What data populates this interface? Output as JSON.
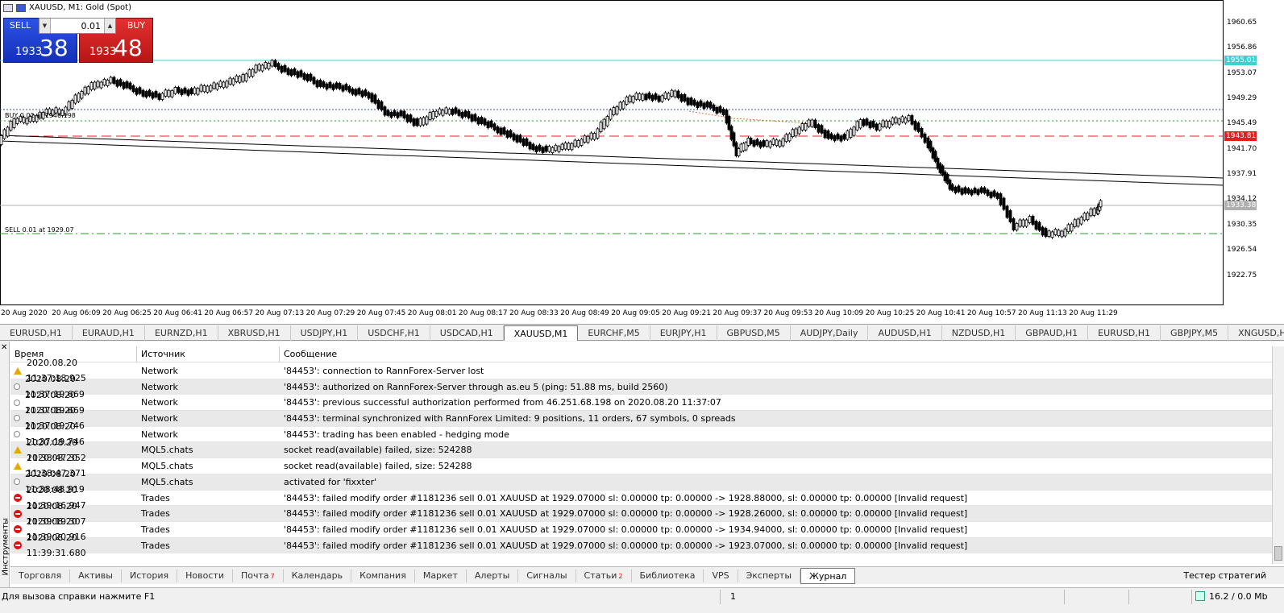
{
  "chart": {
    "title": "XAUUSD, M1:  Gold (Spot)",
    "one_click": {
      "sell_label": "SELL",
      "buy_label": "BUY",
      "volume": "0.01",
      "sell_price_small": "1933",
      "sell_price_big": "38",
      "buy_price_small": "1933",
      "buy_price_big": "48"
    },
    "price_labels": [
      "1960.65",
      "1956.86",
      "1953.07",
      "1949.29",
      "1945.49",
      "1941.70",
      "1937.91",
      "1934.12",
      "1930.35",
      "1926.54",
      "1922.75"
    ],
    "price_tags": [
      {
        "text": "1955.01",
        "color": "#40d0d0"
      },
      {
        "text": "1943.81",
        "color": "#e02020"
      },
      {
        "text": "1933.38",
        "color": "#b0b0b0"
      }
    ],
    "time_labels": [
      "20 Aug 2020",
      "20 Aug 06:09",
      "20 Aug 06:25",
      "20 Aug 06:41",
      "20 Aug 06:57",
      "20 Aug 07:13",
      "20 Aug 07:29",
      "20 Aug 07:45",
      "20 Aug 08:01",
      "20 Aug 08:17",
      "20 Aug 08:33",
      "20 Aug 08:49",
      "20 Aug 09:05",
      "20 Aug 09:21",
      "20 Aug 09:37",
      "20 Aug 09:53",
      "20 Aug 10:09",
      "20 Aug 10:25",
      "20 Aug 10:41",
      "20 Aug 10:57",
      "20 Aug 11:13",
      "20 Aug 11:29"
    ],
    "buy_order_label": "BUY 0.01 at 1946.198",
    "sell_order_label": "SELL 0.01 at 1929.07"
  },
  "symbol_tabs": [
    "EURUSD,H1",
    "EURAUD,H1",
    "EURNZD,H1",
    "XBRUSD,H1",
    "USDJPY,H1",
    "USDCHF,H1",
    "USDCAD,H1",
    "XAUUSD,M1",
    "EURCHF,M5",
    "EURJPY,H1",
    "GBPUSD,M5",
    "AUDJPY,Daily",
    "AUDUSD,H1",
    "NZDUSD,H1",
    "GBPAUD,H1",
    "EURUSD,H1",
    "GBPJPY,M5",
    "XNGUSD,H1"
  ],
  "active_symbol_tab": "XAUUSD,M1",
  "toolbox": {
    "vertical_label": "Инструменты",
    "columns": {
      "time": "Время",
      "source": "Источник",
      "message": "Сообщение"
    },
    "rows": [
      {
        "icon": "warn",
        "time": "2020.08.20 11:37:18.925",
        "source": "Network",
        "message": "'84453': connection to RannForex-Server lost"
      },
      {
        "icon": "info",
        "time": "2020.08.20 11:37:19.669",
        "source": "Network",
        "message": "'84453': authorized on RannForex-Server through as.eu 5 (ping: 51.88 ms, build 2560)"
      },
      {
        "icon": "info",
        "time": "2020.08.20 11:37:19.669",
        "source": "Network",
        "message": "'84453': previous successful authorization performed from 46.251.68.198 on 2020.08.20 11:37:07"
      },
      {
        "icon": "info",
        "time": "2020.08.20 11:37:19.746",
        "source": "Network",
        "message": "'84453': terminal synchronized with RannForex Limited: 9 positions, 11 orders, 67 symbols, 0 spreads"
      },
      {
        "icon": "info",
        "time": "2020.08.20 11:37:19.746",
        "source": "Network",
        "message": "'84453': trading has been enabled - hedging mode"
      },
      {
        "icon": "warn",
        "time": "2020.08.20 11:38:47.352",
        "source": "MQL5.chats",
        "message": "socket read(available) failed, size: 524288"
      },
      {
        "icon": "warn",
        "time": "2020.08.20 11:38:47.371",
        "source": "MQL5.chats",
        "message": "socket read(available) failed, size: 524288"
      },
      {
        "icon": "info",
        "time": "2020.08.20 11:38:48.919",
        "source": "MQL5.chats",
        "message": "activated for 'fixxter'"
      },
      {
        "icon": "err",
        "time": "2020.08.20 11:39:16.947",
        "source": "Trades",
        "message": "'84453': failed modify order #1181236 sell 0.01 XAUUSD at 1929.07000 sl: 0.00000 tp: 0.00000 -> 1928.88000, sl: 0.00000 tp: 0.00000 [Invalid request]"
      },
      {
        "icon": "err",
        "time": "2020.08.20 11:39:19.307",
        "source": "Trades",
        "message": "'84453': failed modify order #1181236 sell 0.01 XAUUSD at 1929.07000 sl: 0.00000 tp: 0.00000 -> 1928.26000, sl: 0.00000 tp: 0.00000 [Invalid request]"
      },
      {
        "icon": "err",
        "time": "2020.08.20 11:39:20.916",
        "source": "Trades",
        "message": "'84453': failed modify order #1181236 sell 0.01 XAUUSD at 1929.07000 sl: 0.00000 tp: 0.00000 -> 1934.94000, sl: 0.00000 tp: 0.00000 [Invalid request]"
      },
      {
        "icon": "err",
        "time": "2020.08.20 11:39:31.680",
        "source": "Trades",
        "message": "'84453': failed modify order #1181236 sell 0.01 XAUUSD at 1929.07000 sl: 0.00000 tp: 0.00000 -> 1923.07000, sl: 0.00000 tp: 0.00000 [Invalid request]"
      }
    ],
    "tabs": [
      {
        "label": "Торговля",
        "badge": ""
      },
      {
        "label": "Активы",
        "badge": ""
      },
      {
        "label": "История",
        "badge": ""
      },
      {
        "label": "Новости",
        "badge": ""
      },
      {
        "label": "Почта",
        "badge": "7"
      },
      {
        "label": "Календарь",
        "badge": ""
      },
      {
        "label": "Компания",
        "badge": ""
      },
      {
        "label": "Маркет",
        "badge": ""
      },
      {
        "label": "Алерты",
        "badge": ""
      },
      {
        "label": "Сигналы",
        "badge": ""
      },
      {
        "label": "Статьи",
        "badge": "2"
      },
      {
        "label": "Библиотека",
        "badge": ""
      },
      {
        "label": "VPS",
        "badge": ""
      },
      {
        "label": "Эксперты",
        "badge": ""
      },
      {
        "label": "Журнал",
        "badge": ""
      }
    ],
    "active_tab": "Журнал",
    "tester_label": "Тестер стратегий"
  },
  "status": {
    "help": "Для вызова справки нажмите F1",
    "page": "1",
    "traffic": "16.2 / 0.0 Mb"
  }
}
